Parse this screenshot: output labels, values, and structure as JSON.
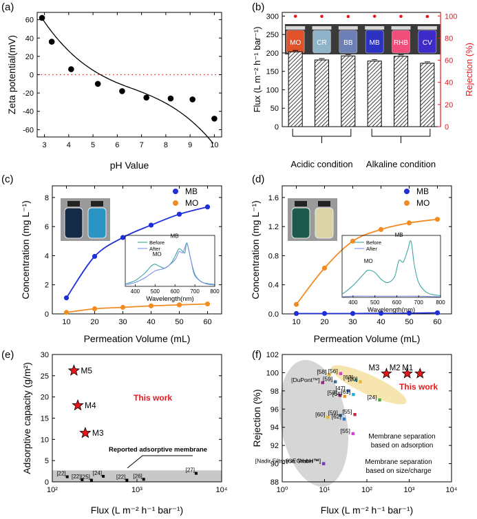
{
  "chart_data": [
    {
      "panel": "(a)",
      "type": "scatter",
      "xlabel": "pH Value",
      "ylabel": "Zeta potential(mV)",
      "xlim": [
        2.7,
        10.3
      ],
      "ylim": [
        -68,
        68
      ],
      "xticks": [
        "3",
        "4",
        "5",
        "6",
        "7",
        "8",
        "9",
        "10"
      ],
      "yticks": [
        "60",
        "40",
        "20",
        "0",
        "-20",
        "-40",
        "-60"
      ],
      "x": [
        2.9,
        3.3,
        4.1,
        5.2,
        6.2,
        7.2,
        8.2,
        9.1,
        10.0
      ],
      "y": [
        62,
        36,
        6,
        -10,
        -18,
        -25,
        -26,
        -27,
        -48
      ],
      "reference_line": 0,
      "colors": {
        "points": "#000000",
        "fit": "#000000",
        "reference": "#e8161b"
      }
    },
    {
      "panel": "(b)",
      "type": "bar",
      "ylabel": "Flux (L m⁻² h⁻¹ bar⁻¹)",
      "y2label": "Rejection (%)",
      "ylim": [
        0,
        310
      ],
      "y2lim": [
        0,
        103.3
      ],
      "yticks": [
        "0",
        "50",
        "100",
        "150",
        "200",
        "250",
        "300"
      ],
      "y2ticks": [
        "0",
        "20",
        "40",
        "60",
        "80",
        "100"
      ],
      "categories": [
        "MO",
        "CR",
        "BB",
        "MB",
        "RHB",
        "CV"
      ],
      "flux": [
        203,
        181,
        192,
        178,
        191,
        172
      ],
      "rejection": [
        99.8,
        99.7,
        99.6,
        99.8,
        99.7,
        99.6
      ],
      "groups": [
        "Acidic condition",
        "Alkaline condition"
      ],
      "colors": {
        "bars": "#ffffff",
        "hatch": "#111111",
        "rejection": "#e8161b",
        "photo": "#3a3a3a"
      },
      "vial_colors": [
        "#e2522a",
        "#8fb4c9",
        "#6c7fb7",
        "#2c32c2",
        "#f04d7a",
        "#3e2ac8"
      ]
    },
    {
      "panel": "(c)",
      "type": "line",
      "xlabel": "Permeation Volume (mL)",
      "ylabel": "Concentration (mg L⁻¹)",
      "xlim": [
        5,
        65
      ],
      "ylim": [
        0,
        8.8
      ],
      "xticks": [
        "10",
        "20",
        "30",
        "40",
        "50",
        "60"
      ],
      "yticks": [
        "0",
        "2",
        "4",
        "6",
        "8"
      ],
      "x": [
        10,
        20,
        30,
        40,
        50,
        60
      ],
      "series": [
        {
          "name": "MB",
          "values": [
            1.1,
            3.95,
            5.25,
            6.1,
            6.85,
            7.35
          ],
          "color": "#1f2fd8"
        },
        {
          "name": "MO",
          "values": [
            0.1,
            0.35,
            0.45,
            0.55,
            0.62,
            0.68
          ],
          "color": "#f28b21"
        }
      ],
      "inset": {
        "xlabel": "Wavelength(nm)",
        "xticks": [
          "400",
          "500",
          "600",
          "700",
          "800"
        ],
        "xlim": [
          350,
          800
        ],
        "legend": [
          "Before",
          "After"
        ],
        "annotations": [
          "MO",
          "MB"
        ],
        "before": {
          "x": [
            350,
            400,
            450,
            480,
            500,
            520,
            550,
            580,
            600,
            620,
            640,
            650,
            660,
            680,
            700,
            730,
            760,
            800
          ],
          "y": [
            0.05,
            0.12,
            0.28,
            0.42,
            0.46,
            0.42,
            0.38,
            0.48,
            0.62,
            0.78,
            0.72,
            0.7,
            0.9,
            0.55,
            0.25,
            0.1,
            0.06,
            0.04
          ]
        },
        "after": {
          "x": [
            350,
            400,
            450,
            500,
            550,
            600,
            620,
            640,
            660,
            680,
            700,
            750,
            800
          ],
          "y": [
            0.03,
            0.08,
            0.18,
            0.32,
            0.38,
            0.55,
            0.72,
            0.7,
            0.88,
            0.55,
            0.22,
            0.06,
            0.03
          ]
        },
        "colors": {
          "before": "#3aa7a0",
          "after": "#7d8fe8"
        }
      },
      "vial_colors": [
        "#152a44",
        "#2a94c5"
      ]
    },
    {
      "panel": "(d)",
      "type": "line",
      "xlabel": "Permeation Volume (mL)",
      "ylabel": "Concentration (mg L⁻¹)",
      "xlim": [
        5,
        65
      ],
      "ylim": [
        0,
        1.76
      ],
      "xticks": [
        "10",
        "20",
        "30",
        "40",
        "50",
        "60"
      ],
      "yticks": [
        "0.0",
        "0.4",
        "0.8",
        "1.2",
        "1.6"
      ],
      "x": [
        10,
        20,
        30,
        40,
        50,
        60
      ],
      "series": [
        {
          "name": "MB",
          "values": [
            0.005,
            0.005,
            0.005,
            0.008,
            0.01,
            0.015
          ],
          "color": "#1f2fd8"
        },
        {
          "name": "MO",
          "values": [
            0.13,
            0.63,
            1.0,
            1.16,
            1.25,
            1.3
          ],
          "color": "#f28b21"
        }
      ],
      "inset": {
        "xlabel": "Wavelength(nm)",
        "xticks": [
          "400",
          "500",
          "600",
          "700",
          "800"
        ],
        "xlim": [
          350,
          800
        ],
        "legend": [
          "Before",
          "After"
        ],
        "annotations": [
          "MO",
          "MB"
        ],
        "before": {
          "x": [
            350,
            400,
            450,
            470,
            500,
            530,
            560,
            590,
            610,
            630,
            650,
            665,
            680,
            700,
            730,
            760,
            800
          ],
          "y": [
            0.05,
            0.2,
            0.4,
            0.46,
            0.42,
            0.3,
            0.25,
            0.35,
            0.62,
            0.6,
            0.8,
            0.95,
            0.55,
            0.25,
            0.1,
            0.05,
            0.03
          ]
        },
        "after": {
          "x": [
            350,
            400,
            500,
            600,
            700,
            800
          ],
          "y": [
            0.01,
            0.02,
            0.02,
            0.02,
            0.02,
            0.01
          ]
        },
        "colors": {
          "before": "#3aa7a0",
          "after": "#7d8fe8"
        }
      },
      "vial_colors": [
        "#1d5a4c",
        "#d9d3a5"
      ]
    },
    {
      "panel": "(e)",
      "type": "scatter",
      "xlabel": "Flux (L m⁻² h⁻¹ bar⁻¹)",
      "ylabel": "Adsorptive capacity (g/m²)",
      "xscale": "log",
      "xlim": [
        100,
        10000
      ],
      "ylim": [
        0,
        30
      ],
      "xticks": [
        "10²",
        "10³",
        "10⁴"
      ],
      "yticks": [
        "0",
        "5",
        "10",
        "15",
        "20",
        "25",
        "30"
      ],
      "this_work": [
        {
          "label": "M5",
          "x": 180,
          "y": 26.2
        },
        {
          "label": "M4",
          "x": 200,
          "y": 18.0
        },
        {
          "label": "M3",
          "x": 245,
          "y": 11.5
        }
      ],
      "reported": [
        {
          "label": "[22]",
          "x": 150,
          "y": 1.2
        },
        {
          "label": "[22]",
          "x": 225,
          "y": 0.5
        },
        {
          "label": "[25]",
          "x": 290,
          "y": 0.4
        },
        {
          "label": "[24]",
          "x": 400,
          "y": 1.3
        },
        {
          "label": "[22]",
          "x": 760,
          "y": 0.4
        },
        {
          "label": "[26]",
          "x": 1200,
          "y": 0.6
        },
        {
          "label": "[27]",
          "x": 5000,
          "y": 2.0
        }
      ],
      "band": [
        0,
        2.7
      ],
      "annotations": [
        "This work",
        "Reported adsorptive membrane"
      ],
      "colors": {
        "star": "#e8161b",
        "band": "#c8c8c8",
        "this_work": "#e8161b"
      }
    },
    {
      "panel": "(f)",
      "type": "scatter",
      "xlabel": "Flux (L m⁻² h⁻¹ bar⁻¹)",
      "ylabel": "Rejection (%)",
      "xscale": "log",
      "xlim": [
        1,
        10000
      ],
      "ylim": [
        88,
        102
      ],
      "xticks": [
        "10⁰",
        "10¹",
        "10²",
        "10³",
        "10⁴"
      ],
      "yticks": [
        "88",
        "90",
        "92",
        "94",
        "96",
        "98",
        "100",
        "102"
      ],
      "this_work": [
        {
          "label": "M3",
          "x": 290,
          "y": 99.9
        },
        {
          "label": "M2",
          "x": 900,
          "y": 99.9
        },
        {
          "label": "M1",
          "x": 1800,
          "y": 99.9
        }
      ],
      "reported": [
        {
          "label": "[58]",
          "x": 13,
          "y": 99.8,
          "color": "#e9b530"
        },
        {
          "label": "[56]",
          "x": 24,
          "y": 99.9,
          "color": "#d83cd0"
        },
        {
          "label": "[DuPont™]",
          "x": 9,
          "y": 98.9,
          "color": "#9a2a8a"
        },
        {
          "label": "[59]",
          "x": 18,
          "y": 99.0,
          "color": "#2f6f9f"
        },
        {
          "label": "[63]",
          "x": 55,
          "y": 99.2,
          "color": "#18b3b3"
        },
        {
          "label": "[20]",
          "x": 70,
          "y": 99.0,
          "color": "#e9b530"
        },
        {
          "label": "[47]",
          "x": 36,
          "y": 98.0,
          "color": "#2a63c8"
        },
        {
          "label": "[57]",
          "x": 23,
          "y": 97.5,
          "color": "#9a2a8a"
        },
        {
          "label": "[64]",
          "x": 30,
          "y": 97.4,
          "color": "#e89230"
        },
        {
          "label": "[61]",
          "x": 48,
          "y": 97.6,
          "color": "#1ab0d8"
        },
        {
          "label": "[24]",
          "x": 200,
          "y": 97.0,
          "color": "#4aa83a"
        },
        {
          "label": "[60]",
          "x": 12,
          "y": 95.1,
          "color": "#e9b530"
        },
        {
          "label": "[59]",
          "x": 24,
          "y": 95.3,
          "color": "#2f6f9f"
        },
        {
          "label": "[62]",
          "x": 29,
          "y": 94.9,
          "color": "#2a7ad8"
        },
        {
          "label": "[55]",
          "x": 52,
          "y": 95.4,
          "color": "#c8283c"
        },
        {
          "label": "[55]",
          "x": 47,
          "y": 93.3,
          "color": "#d83cd0"
        },
        {
          "label": "[Nadir Filtration GmbH™]",
          "x": 9.5,
          "y": 90.0,
          "color": "#7b3ab8"
        },
        {
          "label": "[GE Water™]",
          "x": 9.5,
          "y": 90.0,
          "color": "#7b3ab8"
        }
      ],
      "annotations": [
        "This work",
        "Membrane separation based on adsorption",
        "Membrane separation based on size/charge"
      ],
      "colors": {
        "star": "#e8161b",
        "ellipse_grey": "#cfcfcf",
        "ellipse_yellow": "#f6e2a6",
        "this_work": "#e8161b"
      }
    }
  ]
}
